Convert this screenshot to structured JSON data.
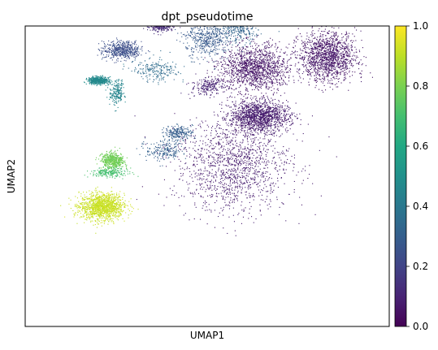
{
  "chart_data": {
    "type": "scatter",
    "title": "dpt_pseudotime",
    "xlabel": "UMAP1",
    "ylabel": "UMAP2",
    "x_ticks_shown": false,
    "y_ticks_shown": false,
    "grid": false,
    "colormap": "viridis",
    "colorbar": {
      "range": [
        0.0,
        1.0
      ],
      "ticks": [
        "0.0",
        "0.2",
        "0.4",
        "0.6",
        "0.8",
        "1.0"
      ],
      "placement": "right"
    },
    "xlim": [
      0,
      10
    ],
    "ylim": [
      0,
      7.5
    ],
    "clusters": [
      {
        "center": [
          2.1,
          3.0
        ],
        "spread": [
          0.55,
          0.3
        ],
        "pseudotime": 0.92,
        "density": "high"
      },
      {
        "center": [
          2.4,
          4.15
        ],
        "spread": [
          0.28,
          0.17
        ],
        "pseudotime": 0.78,
        "density": "medium"
      },
      {
        "center": [
          2.3,
          3.85
        ],
        "spread": [
          0.45,
          0.1
        ],
        "pseudotime": 0.7,
        "density": "low"
      },
      {
        "center": [
          3.8,
          4.4
        ],
        "spread": [
          0.45,
          0.25
        ],
        "pseudotime": 0.3,
        "density": "low"
      },
      {
        "center": [
          5.7,
          4.05
        ],
        "spread": [
          1.45,
          1.05
        ],
        "pseudotime": 0.08,
        "density": "high"
      },
      {
        "center": [
          6.4,
          5.25
        ],
        "spread": [
          0.75,
          0.35
        ],
        "pseudotime": 0.08,
        "density": "high"
      },
      {
        "center": [
          6.3,
          6.45
        ],
        "spread": [
          0.85,
          0.55
        ],
        "pseudotime": 0.06,
        "density": "high"
      },
      {
        "center": [
          8.3,
          6.75
        ],
        "spread": [
          0.7,
          0.55
        ],
        "pseudotime": 0.06,
        "density": "high"
      },
      {
        "center": [
          5.0,
          6.0
        ],
        "spread": [
          0.4,
          0.2
        ],
        "pseudotime": 0.1,
        "density": "low"
      },
      {
        "center": [
          4.5,
          8.6
        ],
        "spread": [
          0.45,
          0.38
        ],
        "pseudotime": 0.45,
        "density": "high"
      },
      {
        "center": [
          4.4,
          8.1
        ],
        "spread": [
          0.25,
          0.4
        ],
        "pseudotime": 0.38,
        "density": "low"
      },
      {
        "center": [
          3.7,
          7.55
        ],
        "spread": [
          0.3,
          0.14
        ],
        "pseudotime": 0.12,
        "density": "medium"
      },
      {
        "center": [
          5.0,
          7.2
        ],
        "spread": [
          0.55,
          0.45
        ],
        "pseudotime": 0.28,
        "density": "medium"
      },
      {
        "center": [
          5.9,
          7.6
        ],
        "spread": [
          0.45,
          0.45
        ],
        "pseudotime": 0.32,
        "density": "medium"
      },
      {
        "center": [
          2.65,
          6.9
        ],
        "spread": [
          0.48,
          0.2
        ],
        "pseudotime": 0.24,
        "density": "medium"
      },
      {
        "center": [
          3.6,
          6.4
        ],
        "spread": [
          0.55,
          0.25
        ],
        "pseudotime": 0.35,
        "density": "low"
      },
      {
        "center": [
          2.0,
          6.15
        ],
        "spread": [
          0.25,
          0.08
        ],
        "pseudotime": 0.47,
        "density": "medium"
      },
      {
        "center": [
          2.5,
          5.85
        ],
        "spread": [
          0.18,
          0.3
        ],
        "pseudotime": 0.45,
        "density": "low"
      },
      {
        "center": [
          4.2,
          4.85
        ],
        "spread": [
          0.35,
          0.15
        ],
        "pseudotime": 0.3,
        "density": "low"
      }
    ]
  }
}
